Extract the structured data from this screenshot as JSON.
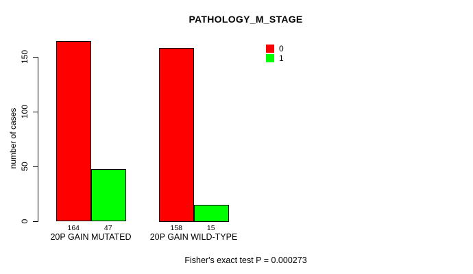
{
  "chart_data": {
    "type": "bar",
    "title": "PATHOLOGY_M_STAGE",
    "ylabel": "number of cases",
    "xlabel": "",
    "categories": [
      "20P GAIN MUTATED",
      "20P GAIN WILD-TYPE"
    ],
    "series": [
      {
        "name": "0",
        "color": "#ff0000",
        "values": [
          164,
          158
        ]
      },
      {
        "name": "1",
        "color": "#00ff00",
        "values": [
          47,
          15
        ]
      }
    ],
    "value_labels": [
      [
        "164",
        "47"
      ],
      [
        "158",
        "15"
      ]
    ],
    "yticks": [
      0,
      50,
      100,
      150
    ],
    "ylim": [
      0,
      170
    ],
    "grid": false,
    "legend_position": "inside-top-right",
    "legend_entries": [
      "0",
      "1"
    ],
    "footer": "Fisher's exact test P = 0.000273"
  },
  "colors": {
    "background": "#ffffff",
    "axis": "#000000",
    "text": "#000000",
    "bar_border": "#000000",
    "series_0": "#ff0000",
    "series_1": "#00ff00"
  }
}
